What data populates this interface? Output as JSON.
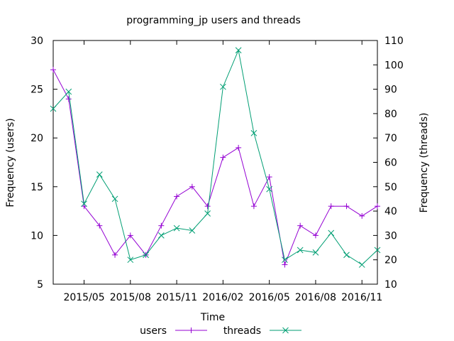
{
  "chart_data": {
    "type": "line",
    "title": "programming_jp users and threads",
    "xlabel": "Time",
    "ylabel": "Frequency (users)",
    "y2label": "Frequency (threads)",
    "x": [
      "2015-03",
      "2015-04",
      "2015-05",
      "2015-06",
      "2015-07",
      "2015-08",
      "2015-09",
      "2015-10",
      "2015-11",
      "2015-12",
      "2016-01",
      "2016-02",
      "2016-03",
      "2016-04",
      "2016-05",
      "2016-06",
      "2016-07",
      "2016-08",
      "2016-09",
      "2016-10",
      "2016-11",
      "2016-12"
    ],
    "xticks": [
      "2015/05",
      "2015/08",
      "2015/11",
      "2016/02",
      "2016/05",
      "2016/08",
      "2016/11"
    ],
    "xtick_positions": [
      "2015-05",
      "2015-08",
      "2015-11",
      "2016-02",
      "2016-05",
      "2016-08",
      "2016-11"
    ],
    "ylim": [
      5,
      30
    ],
    "yticks": [
      5,
      10,
      15,
      20,
      25,
      30
    ],
    "y2lim": [
      10,
      110
    ],
    "y2ticks": [
      10,
      20,
      30,
      40,
      50,
      60,
      70,
      80,
      90,
      100,
      110
    ],
    "series": [
      {
        "name": "users",
        "axis": "y",
        "marker": "plus",
        "color": "#9400d3",
        "values": [
          27,
          24,
          13,
          11,
          8,
          10,
          8,
          11,
          14,
          15,
          13,
          18,
          19,
          13,
          16,
          7,
          11,
          10,
          13,
          13,
          12,
          13
        ]
      },
      {
        "name": "threads",
        "axis": "y2",
        "marker": "cross",
        "color": "#009e73",
        "values": [
          82,
          89,
          43,
          55,
          45,
          20,
          22,
          30,
          33,
          32,
          39,
          91,
          106,
          72,
          49,
          20,
          24,
          23,
          31,
          22,
          18,
          24
        ]
      }
    ],
    "legend": "bottom-center",
    "grid": false
  }
}
